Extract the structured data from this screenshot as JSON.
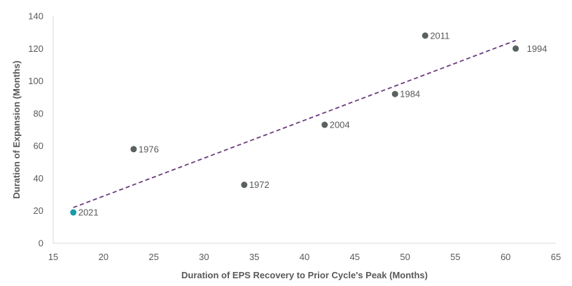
{
  "chart_data": {
    "type": "scatter",
    "title": "",
    "xlabel": "Duration of EPS Recovery to Prior Cycle's Peak (Months)",
    "ylabel": "Duration of Expansion (Months)",
    "xlim": [
      15,
      65
    ],
    "ylim": [
      0,
      140
    ],
    "x_ticks": [
      15,
      20,
      25,
      30,
      35,
      40,
      45,
      50,
      55,
      60,
      65
    ],
    "y_ticks": [
      0,
      20,
      40,
      60,
      80,
      100,
      120,
      140
    ],
    "grid": false,
    "legend": "none",
    "points": [
      {
        "label": "2021",
        "x": 17,
        "y": 19,
        "color": "#1B9AAA"
      },
      {
        "label": "1976",
        "x": 23,
        "y": 58,
        "color": "#5A625F"
      },
      {
        "label": "1972",
        "x": 34,
        "y": 36,
        "color": "#5A625F"
      },
      {
        "label": "2004",
        "x": 42,
        "y": 73,
        "color": "#5A625F"
      },
      {
        "label": "1984",
        "x": 49,
        "y": 92,
        "color": "#5A625F"
      },
      {
        "label": "2011",
        "x": 52,
        "y": 128,
        "color": "#5A625F"
      },
      {
        "label": "1994",
        "x": 61,
        "y": 120,
        "color": "#5A625F"
      }
    ],
    "trendline": {
      "style": "dashed",
      "color": "#6B3C7D",
      "x_start": 17,
      "y_start": 22,
      "x_end": 61,
      "y_end": 125
    },
    "axis_color": "#D9D9D9"
  }
}
